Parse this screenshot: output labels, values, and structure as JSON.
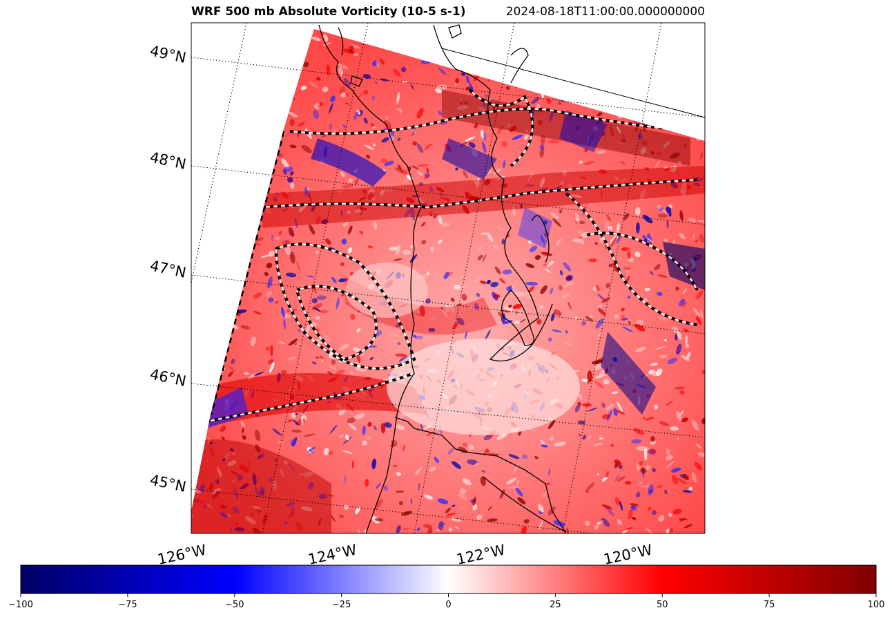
{
  "title": "WRF 500 mb Absolute Vorticity (10-5 s-1)",
  "timestamp": "2024-08-18T11:00:00.000000000",
  "map": {
    "lat_labels": [
      "49°N",
      "48°N",
      "47°N",
      "46°N",
      "45°N"
    ],
    "lon_labels": [
      "126°W",
      "124°W",
      "122°W",
      "120°W"
    ],
    "colors": {
      "negative": "#000066",
      "mid_negative": "#0000ff",
      "zero": "#ffffff",
      "mid_positive": "#ff0000",
      "positive": "#800000"
    }
  },
  "colorbar": {
    "ticks": [
      "−100",
      "−75",
      "−50",
      "−25",
      "0",
      "25",
      "50",
      "75",
      "100"
    ],
    "range": [
      -100,
      100
    ]
  }
}
